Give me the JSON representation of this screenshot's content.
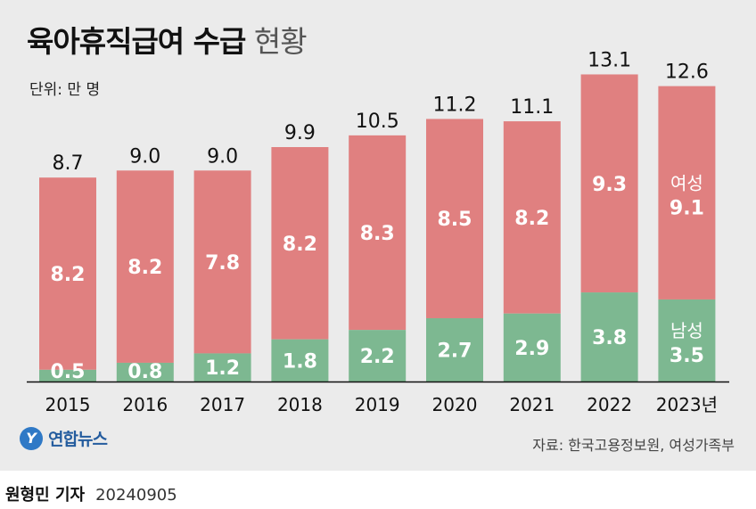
{
  "title": {
    "main": "육아휴직급여 수급",
    "sub": "현황"
  },
  "unit": "단위: 만 명",
  "source": "자료: 한국고용정보원, 여성가족부",
  "logo": {
    "mark": "Y",
    "text": "연합뉴스"
  },
  "byline": {
    "reporter": "원형민 기자",
    "date": "20240905"
  },
  "colors": {
    "female": "#e08080",
    "male": "#7db891",
    "background": "#ebebeb"
  },
  "chart_data": {
    "type": "bar",
    "stacked": true,
    "categories": [
      "2015",
      "2016",
      "2017",
      "2018",
      "2019",
      "2020",
      "2021",
      "2022",
      "2023년"
    ],
    "totals": [
      "8.7",
      "9.0",
      "9.0",
      "9.9",
      "10.5",
      "11.2",
      "11.1",
      "13.1",
      "12.6"
    ],
    "series": [
      {
        "name": "남성",
        "color": "#7db891",
        "values": [
          0.5,
          0.8,
          1.2,
          1.8,
          2.2,
          2.7,
          2.9,
          3.8,
          3.5
        ]
      },
      {
        "name": "여성",
        "color": "#e08080",
        "values": [
          8.2,
          8.2,
          7.8,
          8.2,
          8.3,
          8.5,
          8.2,
          9.3,
          9.1
        ]
      }
    ],
    "legend_placement": "inline on last bar",
    "ylim": [
      0,
      14
    ],
    "grid": false
  }
}
